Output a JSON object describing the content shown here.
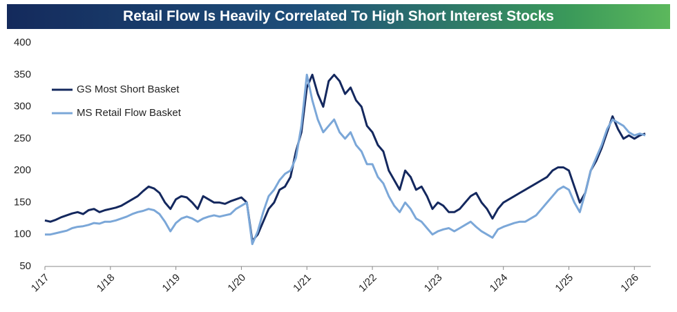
{
  "chart_data": {
    "type": "line",
    "title": "Retail Flow Is Heavily Correlated To High Short Interest Stocks",
    "x": [
      "2017-01",
      "2017-02",
      "2017-03",
      "2017-04",
      "2017-05",
      "2017-06",
      "2017-07",
      "2017-08",
      "2017-09",
      "2017-10",
      "2017-11",
      "2017-12",
      "2018-01",
      "2018-02",
      "2018-03",
      "2018-04",
      "2018-05",
      "2018-06",
      "2018-07",
      "2018-08",
      "2018-09",
      "2018-10",
      "2018-11",
      "2018-12",
      "2019-01",
      "2019-02",
      "2019-03",
      "2019-04",
      "2019-05",
      "2019-06",
      "2019-07",
      "2019-08",
      "2019-09",
      "2019-10",
      "2019-11",
      "2019-12",
      "2020-01",
      "2020-02",
      "2020-03",
      "2020-04",
      "2020-05",
      "2020-06",
      "2020-07",
      "2020-08",
      "2020-09",
      "2020-10",
      "2020-11",
      "2020-12",
      "2021-01",
      "2021-02",
      "2021-03",
      "2021-04",
      "2021-05",
      "2021-06",
      "2021-07",
      "2021-08",
      "2021-09",
      "2021-10",
      "2021-11",
      "2021-12",
      "2022-01",
      "2022-02",
      "2022-03",
      "2022-04",
      "2022-05",
      "2022-06",
      "2022-07",
      "2022-08",
      "2022-09",
      "2022-10",
      "2022-11",
      "2022-12",
      "2023-01",
      "2023-02",
      "2023-03",
      "2023-04",
      "2023-05",
      "2023-06",
      "2023-07",
      "2023-08",
      "2023-09",
      "2023-10",
      "2023-11",
      "2023-12",
      "2024-01",
      "2024-02",
      "2024-03",
      "2024-04",
      "2024-05",
      "2024-06",
      "2024-07",
      "2024-08",
      "2024-09",
      "2024-10",
      "2024-11",
      "2024-12",
      "2025-01",
      "2025-02",
      "2025-03",
      "2025-04",
      "2025-05",
      "2025-06",
      "2025-07",
      "2025-08",
      "2025-09",
      "2025-10",
      "2025-11",
      "2025-12",
      "2026-01",
      "2026-02",
      "2026-03"
    ],
    "series": [
      {
        "name": "GS Most Short Basket",
        "color": "#14285e",
        "values": [
          122,
          120,
          123,
          127,
          130,
          133,
          135,
          132,
          138,
          140,
          135,
          138,
          140,
          142,
          145,
          150,
          155,
          160,
          168,
          175,
          172,
          165,
          150,
          140,
          155,
          160,
          158,
          150,
          140,
          160,
          155,
          150,
          150,
          148,
          152,
          155,
          158,
          150,
          90,
          100,
          120,
          140,
          150,
          170,
          175,
          190,
          230,
          260,
          330,
          350,
          320,
          300,
          340,
          350,
          340,
          320,
          330,
          310,
          300,
          270,
          260,
          240,
          230,
          200,
          185,
          170,
          200,
          190,
          170,
          175,
          160,
          140,
          150,
          145,
          135,
          135,
          140,
          150,
          160,
          165,
          150,
          140,
          125,
          140,
          150,
          155,
          160,
          165,
          170,
          175,
          180,
          185,
          190,
          200,
          205,
          205,
          200,
          175,
          150,
          165,
          200,
          215,
          235,
          260,
          285,
          265,
          250,
          255,
          250,
          255,
          258
        ]
      },
      {
        "name": "MS Retail Flow Basket",
        "color": "#7ba7d8",
        "values": [
          100,
          100,
          102,
          104,
          106,
          110,
          112,
          113,
          115,
          118,
          117,
          120,
          120,
          122,
          125,
          128,
          132,
          135,
          137,
          140,
          138,
          132,
          120,
          105,
          118,
          125,
          128,
          125,
          120,
          125,
          128,
          130,
          128,
          130,
          132,
          140,
          145,
          150,
          85,
          105,
          135,
          160,
          170,
          185,
          195,
          200,
          220,
          270,
          350,
          310,
          280,
          260,
          270,
          280,
          260,
          250,
          260,
          240,
          230,
          210,
          210,
          190,
          180,
          160,
          145,
          135,
          150,
          140,
          125,
          120,
          110,
          100,
          105,
          108,
          110,
          105,
          110,
          115,
          120,
          112,
          105,
          100,
          95,
          108,
          112,
          115,
          118,
          120,
          120,
          125,
          130,
          140,
          150,
          160,
          170,
          175,
          170,
          150,
          135,
          165,
          200,
          220,
          240,
          265,
          280,
          275,
          270,
          260,
          255,
          258,
          255
        ]
      }
    ],
    "xlim": [
      "2017-01",
      "2026-04"
    ],
    "xticks": [
      {
        "value": "2017-01",
        "label": "1/17"
      },
      {
        "value": "2018-01",
        "label": "1/18"
      },
      {
        "value": "2019-01",
        "label": "1/19"
      },
      {
        "value": "2020-01",
        "label": "1/20"
      },
      {
        "value": "2021-01",
        "label": "1/21"
      },
      {
        "value": "2022-01",
        "label": "1/22"
      },
      {
        "value": "2023-01",
        "label": "1/23"
      },
      {
        "value": "2024-01",
        "label": "1/24"
      },
      {
        "value": "2025-01",
        "label": "1/25"
      },
      {
        "value": "2026-01",
        "label": "1/26"
      }
    ],
    "ylim": [
      50,
      400
    ],
    "yticks": [
      50,
      100,
      150,
      200,
      250,
      300,
      350,
      400
    ],
    "grid": false,
    "legend": "upper left"
  }
}
